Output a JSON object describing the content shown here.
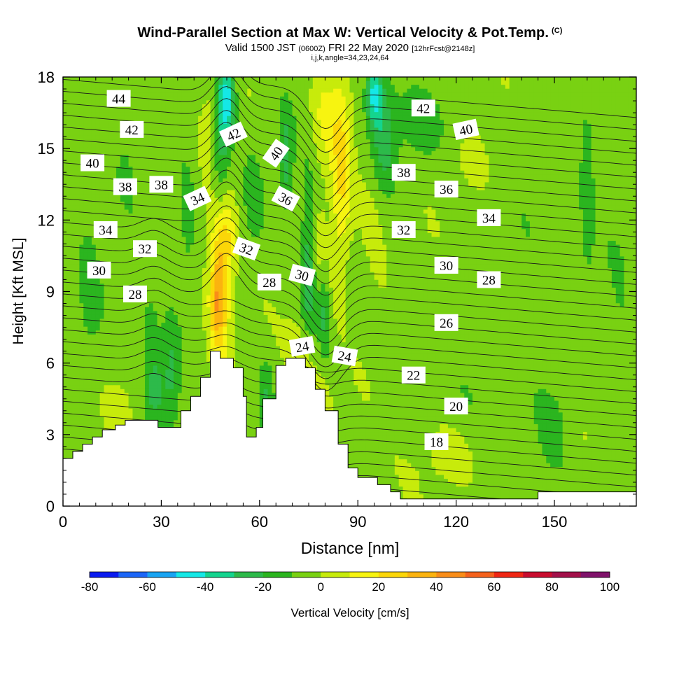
{
  "header": {
    "title": "Wind-Parallel Section at Max W: Vertical Velocity & Pot.Temp.",
    "copyright": "(C)",
    "valid_prefix": "Valid 1500 JST",
    "valid_z": "(0600Z)",
    "valid_date": "FRI 22 May 2020",
    "forecast": "[12hrFcst@2148z]",
    "indices": "i,j,k,angle=34,23,24,64"
  },
  "chart_data": {
    "type": "heatmap",
    "xlabel": "Distance [nm]",
    "ylabel": "Height [Kft MSL]",
    "xlim": [
      0,
      175
    ],
    "ylim": [
      0,
      18
    ],
    "x_ticks": [
      "0",
      "30",
      "60",
      "90",
      "120",
      "150"
    ],
    "y_ticks": [
      "0",
      "3",
      "6",
      "9",
      "12",
      "15",
      "18"
    ],
    "x_tick_values": [
      0,
      30,
      60,
      90,
      120,
      150
    ],
    "y_tick_values": [
      0,
      3,
      6,
      9,
      12,
      15,
      18
    ],
    "terrain": [
      [
        0,
        2.0
      ],
      [
        3,
        2.0
      ],
      [
        3,
        2.3
      ],
      [
        6,
        2.3
      ],
      [
        6,
        2.6
      ],
      [
        9,
        2.6
      ],
      [
        9,
        2.9
      ],
      [
        12,
        2.9
      ],
      [
        12,
        3.2
      ],
      [
        16,
        3.2
      ],
      [
        16,
        3.4
      ],
      [
        19,
        3.4
      ],
      [
        19,
        3.6
      ],
      [
        29,
        3.6
      ],
      [
        29,
        3.3
      ],
      [
        36,
        3.3
      ],
      [
        36,
        4.0
      ],
      [
        39,
        4.0
      ],
      [
        39,
        4.6
      ],
      [
        42,
        4.6
      ],
      [
        42,
        5.4
      ],
      [
        45,
        5.4
      ],
      [
        45,
        6.5
      ],
      [
        48,
        6.5
      ],
      [
        48,
        6.2
      ],
      [
        52,
        6.2
      ],
      [
        52,
        5.8
      ],
      [
        55,
        5.8
      ],
      [
        55,
        4.6
      ],
      [
        55,
        4.6
      ],
      [
        56,
        4.6
      ],
      [
        56,
        2.9
      ],
      [
        59,
        2.9
      ],
      [
        59,
        3.3
      ],
      [
        61,
        3.3
      ],
      [
        61,
        4.5
      ],
      [
        65,
        4.5
      ],
      [
        65,
        5.9
      ],
      [
        68,
        5.9
      ],
      [
        68,
        6.2
      ],
      [
        74,
        6.2
      ],
      [
        74,
        5.8
      ],
      [
        77,
        5.8
      ],
      [
        77,
        4.9
      ],
      [
        80,
        4.9
      ],
      [
        80,
        4.0
      ],
      [
        84,
        4.0
      ],
      [
        84,
        2.6
      ],
      [
        87,
        2.6
      ],
      [
        87,
        1.6
      ],
      [
        90,
        1.6
      ],
      [
        90,
        1.2
      ],
      [
        96,
        1.2
      ],
      [
        96,
        0.9
      ],
      [
        100,
        0.9
      ],
      [
        100,
        0.6
      ],
      [
        103,
        0.6
      ],
      [
        103,
        0.3
      ],
      [
        145,
        0.3
      ],
      [
        145,
        0.6
      ],
      [
        175,
        0.6
      ]
    ],
    "colorbar": {
      "label": "Vertical Velocity [cm/s]",
      "ticks": [
        "-80",
        "-60",
        "-40",
        "-20",
        "0",
        "20",
        "40",
        "60",
        "80",
        "100"
      ],
      "range": [
        -80,
        100
      ],
      "step": 10,
      "colors": [
        "#0a1bf0",
        "#1c66f7",
        "#18a4f3",
        "#15e8e6",
        "#14d48e",
        "#2dba4a",
        "#2bb51f",
        "#79d112",
        "#c7eb0b",
        "#f7f410",
        "#fbd608",
        "#fbb30f",
        "#f98d18",
        "#f5611c",
        "#f02614",
        "#c90c2f",
        "#a3104a",
        "#80126b"
      ]
    },
    "contour_labels": [
      "44",
      "42",
      "40",
      "38",
      "38",
      "34",
      "34",
      "32",
      "30",
      "28",
      "42",
      "40",
      "36",
      "32",
      "30",
      "28",
      "24",
      "24",
      "22",
      "20",
      "18",
      "42",
      "40",
      "38",
      "36",
      "34",
      "32",
      "30",
      "28",
      "26"
    ]
  }
}
